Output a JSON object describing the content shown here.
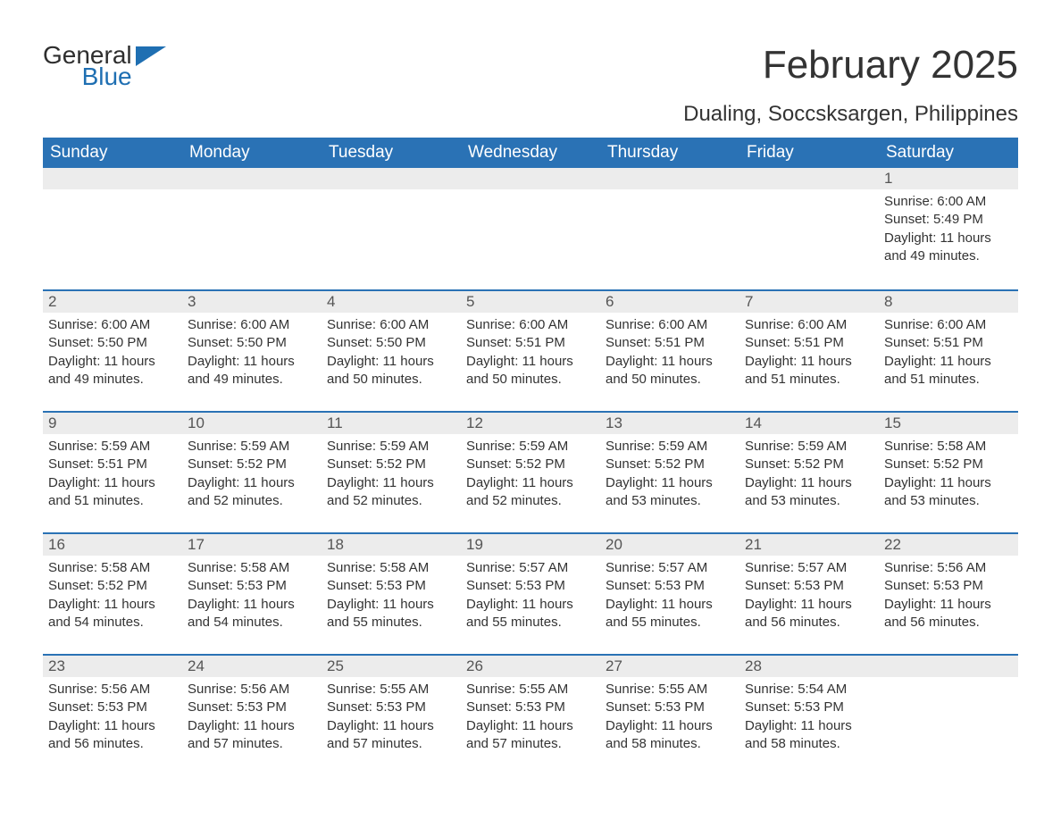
{
  "logo": {
    "word1": "General",
    "word2": "Blue",
    "icon_color": "#1f6fb2"
  },
  "title": "February 2025",
  "location": "Dualing, Soccsksargen, Philippines",
  "header_bg": "#2a72b5",
  "header_fg": "#ffffff",
  "daynum_bg": "#ececec",
  "week_border": "#2a72b5",
  "text_color": "#333333",
  "weekdays": [
    "Sunday",
    "Monday",
    "Tuesday",
    "Wednesday",
    "Thursday",
    "Friday",
    "Saturday"
  ],
  "weeks": [
    [
      {
        "day": "",
        "sunrise": "",
        "sunset": "",
        "daylight": ""
      },
      {
        "day": "",
        "sunrise": "",
        "sunset": "",
        "daylight": ""
      },
      {
        "day": "",
        "sunrise": "",
        "sunset": "",
        "daylight": ""
      },
      {
        "day": "",
        "sunrise": "",
        "sunset": "",
        "daylight": ""
      },
      {
        "day": "",
        "sunrise": "",
        "sunset": "",
        "daylight": ""
      },
      {
        "day": "",
        "sunrise": "",
        "sunset": "",
        "daylight": ""
      },
      {
        "day": "1",
        "sunrise": "Sunrise: 6:00 AM",
        "sunset": "Sunset: 5:49 PM",
        "daylight": "Daylight: 11 hours and 49 minutes."
      }
    ],
    [
      {
        "day": "2",
        "sunrise": "Sunrise: 6:00 AM",
        "sunset": "Sunset: 5:50 PM",
        "daylight": "Daylight: 11 hours and 49 minutes."
      },
      {
        "day": "3",
        "sunrise": "Sunrise: 6:00 AM",
        "sunset": "Sunset: 5:50 PM",
        "daylight": "Daylight: 11 hours and 49 minutes."
      },
      {
        "day": "4",
        "sunrise": "Sunrise: 6:00 AM",
        "sunset": "Sunset: 5:50 PM",
        "daylight": "Daylight: 11 hours and 50 minutes."
      },
      {
        "day": "5",
        "sunrise": "Sunrise: 6:00 AM",
        "sunset": "Sunset: 5:51 PM",
        "daylight": "Daylight: 11 hours and 50 minutes."
      },
      {
        "day": "6",
        "sunrise": "Sunrise: 6:00 AM",
        "sunset": "Sunset: 5:51 PM",
        "daylight": "Daylight: 11 hours and 50 minutes."
      },
      {
        "day": "7",
        "sunrise": "Sunrise: 6:00 AM",
        "sunset": "Sunset: 5:51 PM",
        "daylight": "Daylight: 11 hours and 51 minutes."
      },
      {
        "day": "8",
        "sunrise": "Sunrise: 6:00 AM",
        "sunset": "Sunset: 5:51 PM",
        "daylight": "Daylight: 11 hours and 51 minutes."
      }
    ],
    [
      {
        "day": "9",
        "sunrise": "Sunrise: 5:59 AM",
        "sunset": "Sunset: 5:51 PM",
        "daylight": "Daylight: 11 hours and 51 minutes."
      },
      {
        "day": "10",
        "sunrise": "Sunrise: 5:59 AM",
        "sunset": "Sunset: 5:52 PM",
        "daylight": "Daylight: 11 hours and 52 minutes."
      },
      {
        "day": "11",
        "sunrise": "Sunrise: 5:59 AM",
        "sunset": "Sunset: 5:52 PM",
        "daylight": "Daylight: 11 hours and 52 minutes."
      },
      {
        "day": "12",
        "sunrise": "Sunrise: 5:59 AM",
        "sunset": "Sunset: 5:52 PM",
        "daylight": "Daylight: 11 hours and 52 minutes."
      },
      {
        "day": "13",
        "sunrise": "Sunrise: 5:59 AM",
        "sunset": "Sunset: 5:52 PM",
        "daylight": "Daylight: 11 hours and 53 minutes."
      },
      {
        "day": "14",
        "sunrise": "Sunrise: 5:59 AM",
        "sunset": "Sunset: 5:52 PM",
        "daylight": "Daylight: 11 hours and 53 minutes."
      },
      {
        "day": "15",
        "sunrise": "Sunrise: 5:58 AM",
        "sunset": "Sunset: 5:52 PM",
        "daylight": "Daylight: 11 hours and 53 minutes."
      }
    ],
    [
      {
        "day": "16",
        "sunrise": "Sunrise: 5:58 AM",
        "sunset": "Sunset: 5:52 PM",
        "daylight": "Daylight: 11 hours and 54 minutes."
      },
      {
        "day": "17",
        "sunrise": "Sunrise: 5:58 AM",
        "sunset": "Sunset: 5:53 PM",
        "daylight": "Daylight: 11 hours and 54 minutes."
      },
      {
        "day": "18",
        "sunrise": "Sunrise: 5:58 AM",
        "sunset": "Sunset: 5:53 PM",
        "daylight": "Daylight: 11 hours and 55 minutes."
      },
      {
        "day": "19",
        "sunrise": "Sunrise: 5:57 AM",
        "sunset": "Sunset: 5:53 PM",
        "daylight": "Daylight: 11 hours and 55 minutes."
      },
      {
        "day": "20",
        "sunrise": "Sunrise: 5:57 AM",
        "sunset": "Sunset: 5:53 PM",
        "daylight": "Daylight: 11 hours and 55 minutes."
      },
      {
        "day": "21",
        "sunrise": "Sunrise: 5:57 AM",
        "sunset": "Sunset: 5:53 PM",
        "daylight": "Daylight: 11 hours and 56 minutes."
      },
      {
        "day": "22",
        "sunrise": "Sunrise: 5:56 AM",
        "sunset": "Sunset: 5:53 PM",
        "daylight": "Daylight: 11 hours and 56 minutes."
      }
    ],
    [
      {
        "day": "23",
        "sunrise": "Sunrise: 5:56 AM",
        "sunset": "Sunset: 5:53 PM",
        "daylight": "Daylight: 11 hours and 56 minutes."
      },
      {
        "day": "24",
        "sunrise": "Sunrise: 5:56 AM",
        "sunset": "Sunset: 5:53 PM",
        "daylight": "Daylight: 11 hours and 57 minutes."
      },
      {
        "day": "25",
        "sunrise": "Sunrise: 5:55 AM",
        "sunset": "Sunset: 5:53 PM",
        "daylight": "Daylight: 11 hours and 57 minutes."
      },
      {
        "day": "26",
        "sunrise": "Sunrise: 5:55 AM",
        "sunset": "Sunset: 5:53 PM",
        "daylight": "Daylight: 11 hours and 57 minutes."
      },
      {
        "day": "27",
        "sunrise": "Sunrise: 5:55 AM",
        "sunset": "Sunset: 5:53 PM",
        "daylight": "Daylight: 11 hours and 58 minutes."
      },
      {
        "day": "28",
        "sunrise": "Sunrise: 5:54 AM",
        "sunset": "Sunset: 5:53 PM",
        "daylight": "Daylight: 11 hours and 58 minutes."
      },
      {
        "day": "",
        "sunrise": "",
        "sunset": "",
        "daylight": ""
      }
    ]
  ]
}
